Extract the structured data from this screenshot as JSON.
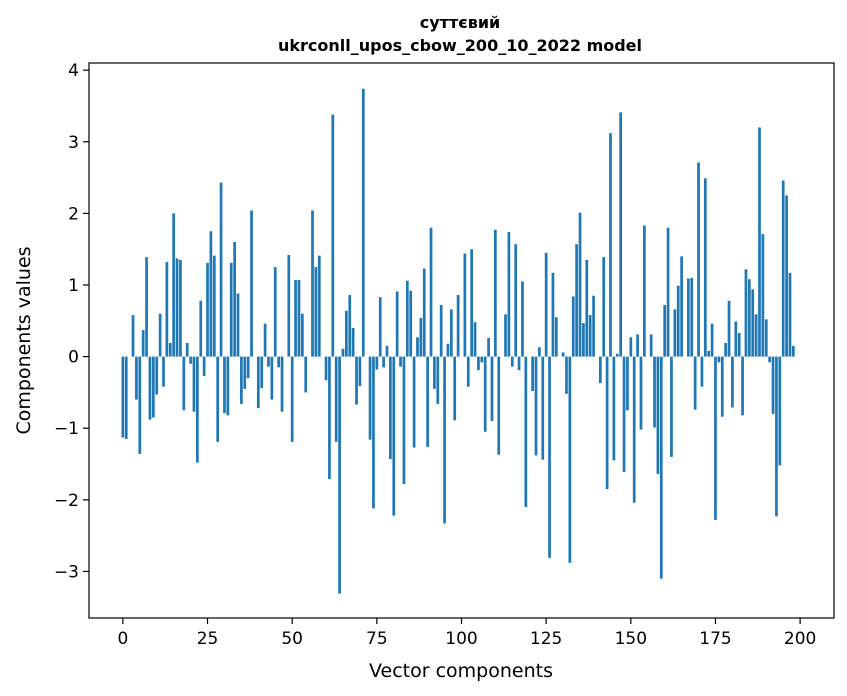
{
  "chart_data": {
    "type": "bar",
    "title_line1": "суттєвий",
    "title_line2": "ukrconll_upos_cbow_200_10_2022 model",
    "xlabel": "Vector components",
    "ylabel": "Components values",
    "xlim": [
      -10,
      210
    ],
    "ylim": [
      -3.65,
      4.1
    ],
    "xticks": [
      0,
      25,
      50,
      75,
      100,
      125,
      150,
      175,
      200
    ],
    "yticks": [
      -3,
      -2,
      -1,
      0,
      1,
      2,
      3,
      4
    ],
    "ytick_labels": [
      "−3",
      "−2",
      "−1",
      "0",
      "1",
      "2",
      "3",
      "4"
    ],
    "bar_color": "#1f77b4",
    "grid": false,
    "values": [
      -1.13,
      -1.15,
      0.0,
      0.58,
      -0.6,
      -1.36,
      0.37,
      1.39,
      -0.88,
      -0.85,
      -0.53,
      0.6,
      -0.42,
      1.32,
      0.19,
      2.0,
      1.37,
      1.35,
      -0.75,
      0.19,
      -0.1,
      -0.77,
      -1.48,
      0.78,
      -0.27,
      1.31,
      1.75,
      1.41,
      -1.19,
      2.43,
      -0.79,
      -0.82,
      1.31,
      1.6,
      0.88,
      -0.66,
      -0.45,
      -0.3,
      2.04,
      0.0,
      -0.72,
      -0.44,
      0.46,
      -0.14,
      -0.6,
      1.25,
      -0.15,
      -0.77,
      0.0,
      1.42,
      -1.19,
      1.07,
      1.07,
      0.6,
      -0.5,
      0.0,
      2.04,
      1.25,
      1.41,
      0.0,
      -0.33,
      -1.71,
      3.38,
      -1.19,
      -3.31,
      0.11,
      0.64,
      0.86,
      0.4,
      -0.67,
      -0.41,
      3.74,
      0.0,
      -1.16,
      -2.12,
      -0.18,
      0.83,
      -0.15,
      0.15,
      -1.43,
      -2.22,
      0.91,
      -0.14,
      -1.78,
      1.06,
      0.92,
      -1.27,
      0.27,
      0.54,
      1.23,
      -1.26,
      1.8,
      -0.45,
      -0.66,
      0.72,
      -2.33,
      0.18,
      0.66,
      -0.89,
      0.86,
      0.0,
      1.44,
      -0.42,
      1.5,
      0.48,
      -0.19,
      -0.08,
      -1.05,
      0.26,
      -0.9,
      1.77,
      -1.37,
      0.0,
      0.59,
      1.74,
      -0.14,
      1.57,
      -0.19,
      1.05,
      -2.1,
      0.0,
      -0.48,
      -1.38,
      0.13,
      -1.44,
      1.45,
      -2.81,
      1.17,
      0.55,
      0.0,
      0.06,
      -0.52,
      -2.88,
      0.84,
      1.57,
      2.01,
      0.47,
      1.35,
      0.58,
      0.85,
      0.0,
      -0.37,
      1.39,
      -1.85,
      3.12,
      -1.45,
      0.04,
      3.41,
      -1.61,
      -0.75,
      0.27,
      -2.04,
      0.31,
      -1.02,
      1.83,
      0.0,
      0.31,
      -0.99,
      -1.64,
      -3.1,
      0.72,
      1.8,
      -1.4,
      0.66,
      0.99,
      1.4,
      0.0,
      1.09,
      1.1,
      -0.74,
      2.71,
      -0.42,
      2.49,
      0.08,
      0.46,
      -2.28,
      -0.08,
      -0.84,
      0.19,
      0.78,
      -0.71,
      0.49,
      0.33,
      -0.82,
      1.22,
      1.08,
      0.94,
      0.59,
      3.2,
      1.71,
      0.52,
      -0.08,
      -0.8,
      -2.23,
      -1.52,
      2.46,
      2.25,
      1.17,
      0.15
    ]
  }
}
